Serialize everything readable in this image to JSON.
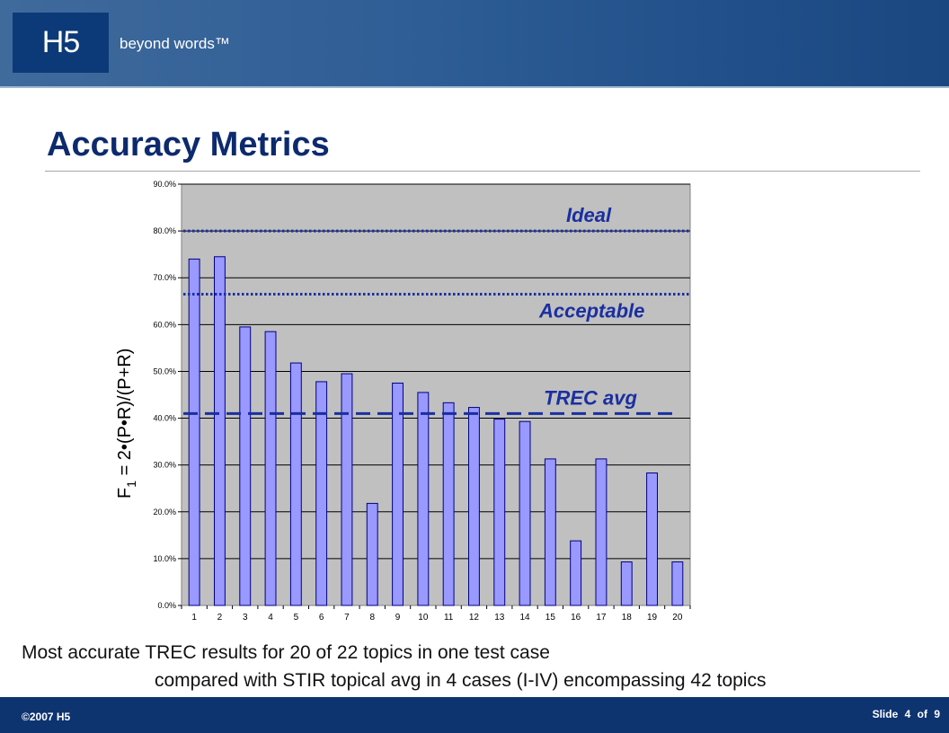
{
  "header": {
    "logo_text": "H5",
    "tagline": "beyond words™"
  },
  "title": "Accuracy Metrics",
  "chart_data": {
    "type": "bar",
    "categories": [
      "1",
      "2",
      "3",
      "4",
      "5",
      "6",
      "7",
      "8",
      "9",
      "10",
      "11",
      "12",
      "13",
      "14",
      "15",
      "16",
      "17",
      "18",
      "19",
      "20"
    ],
    "values": [
      74.0,
      74.5,
      59.5,
      58.5,
      51.8,
      47.8,
      49.5,
      21.8,
      47.5,
      45.5,
      43.3,
      42.3,
      39.8,
      39.3,
      31.3,
      13.8,
      31.3,
      9.3,
      28.3,
      9.3
    ],
    "ylim": [
      0,
      90
    ],
    "yticks": [
      "0.0%",
      "10.0%",
      "20.0%",
      "30.0%",
      "40.0%",
      "50.0%",
      "60.0%",
      "70.0%",
      "80.0%",
      "90.0%"
    ],
    "ylabel": "F1 = 2•(P•R)/(P+R)",
    "ylabel_main": "F",
    "ylabel_sub": "1",
    "ylabel_rest": " = 2•(P•R)/(P+R)",
    "grid": true,
    "bar_color": "#9999ff",
    "plot_bg": "#c0c0c0",
    "reference_lines": [
      {
        "label": "Ideal",
        "value": 80.0,
        "style": "dotted"
      },
      {
        "label": "Acceptable",
        "value": 66.5,
        "style": "dotted"
      },
      {
        "label": "TREC avg",
        "value": 41.0,
        "style": "dashed"
      }
    ],
    "ref_color": "#1a2fa0"
  },
  "caption": {
    "line1": "Most accurate TREC results for 20 of 22 topics in one test case",
    "line2": "compared with STIR topical avg in 4 cases (I-IV) encompassing 42 topics"
  },
  "footer": {
    "copyright": "©2007  H5",
    "slide_word": "Slide",
    "slide_number": "4",
    "of_word": "of",
    "slide_total": "9"
  }
}
